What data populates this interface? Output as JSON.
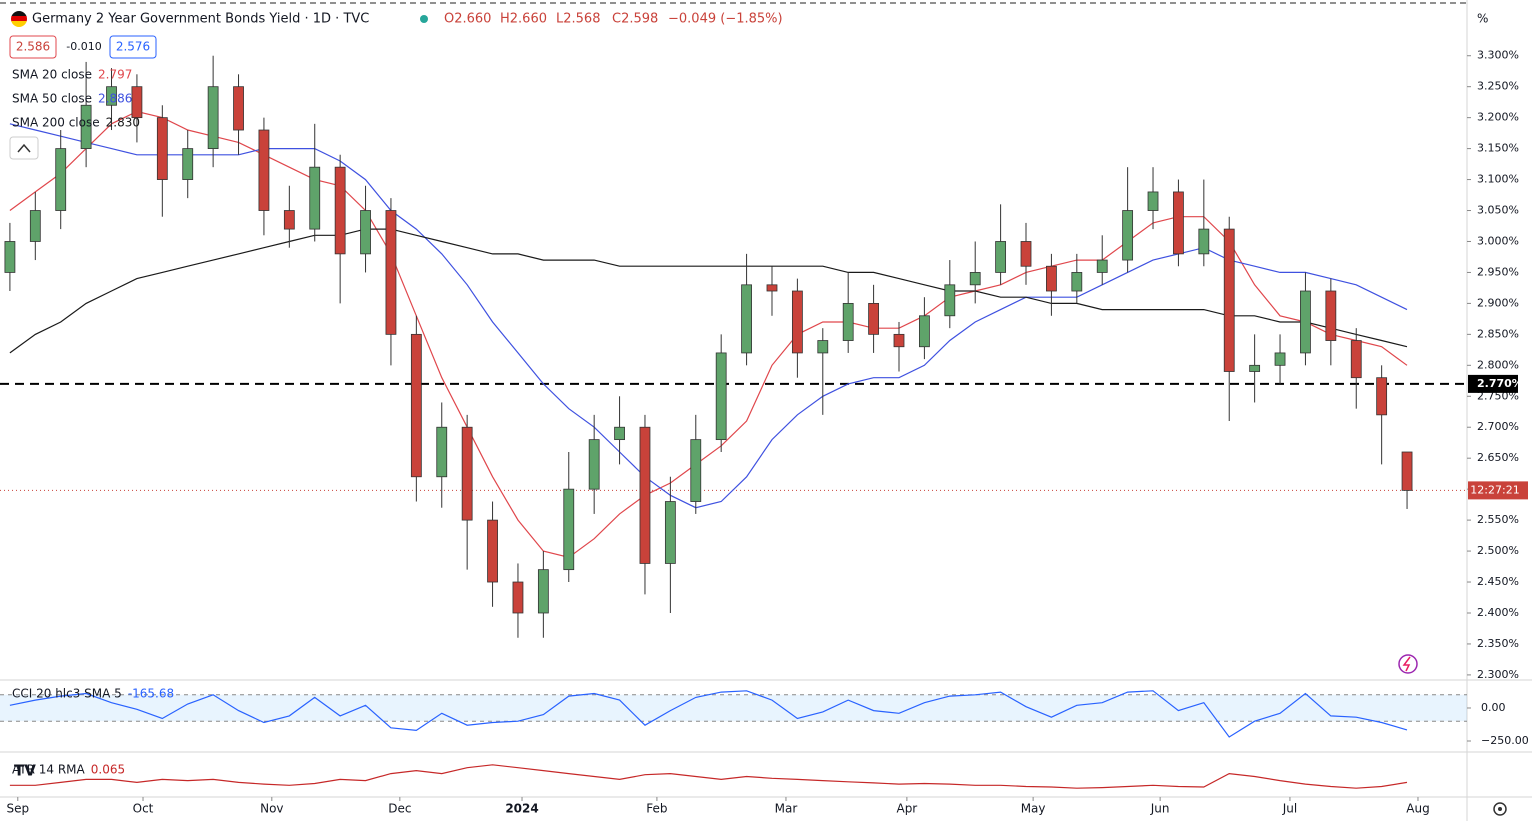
{
  "header": {
    "title": "Germany 2 Year Government Bonds Yield · 1D · TVC",
    "open": "O2.660",
    "high": "H2.660",
    "low": "L2.568",
    "close": "C2.598",
    "change": "−0.049 (−1.85%)"
  },
  "quote": {
    "bid": "2.586",
    "spread": "-0.010",
    "ask": "2.576"
  },
  "chart_data": [
    {
      "type": "candlestick",
      "y_unit_label": "%",
      "countdown": "12:27:21",
      "up_color": "#5fa36a",
      "down_color": "#c9423a",
      "xlim": [
        -0.39,
        57.36
      ],
      "xticks": [
        {
          "value": 0.31,
          "label": "Sep"
        },
        {
          "value": 5.24,
          "label": "Oct"
        },
        {
          "value": 10.31,
          "label": "Nov"
        },
        {
          "value": 15.35,
          "label": "Dec"
        },
        {
          "value": 20.16,
          "label": "2024"
        },
        {
          "value": 25.47,
          "label": "Feb"
        },
        {
          "value": 30.55,
          "label": "Mar"
        },
        {
          "value": 35.31,
          "label": "Apr"
        },
        {
          "value": 40.28,
          "label": "May"
        },
        {
          "value": 45.28,
          "label": "Jun"
        },
        {
          "value": 50.39,
          "label": "Jul"
        },
        {
          "value": 55.43,
          "label": "Aug"
        }
      ],
      "ylim": [
        2.295,
        3.39
      ],
      "yticks": [
        {
          "value": 3.3,
          "label": "3.300%"
        },
        {
          "value": 3.25,
          "label": "3.250%"
        },
        {
          "value": 3.2,
          "label": "3.200%"
        },
        {
          "value": 3.15,
          "label": "3.150%"
        },
        {
          "value": 3.1,
          "label": "3.100%"
        },
        {
          "value": 3.05,
          "label": "3.050%"
        },
        {
          "value": 3.0,
          "label": "3.000%"
        },
        {
          "value": 2.95,
          "label": "2.950%"
        },
        {
          "value": 2.9,
          "label": "2.900%"
        },
        {
          "value": 2.85,
          "label": "2.850%"
        },
        {
          "value": 2.8,
          "label": "2.800%"
        },
        {
          "value": 2.75,
          "label": "2.750%"
        },
        {
          "value": 2.7,
          "label": "2.700%"
        },
        {
          "value": 2.65,
          "label": "2.650%"
        },
        {
          "value": 2.6,
          "label": "2.600%"
        },
        {
          "value": 2.55,
          "label": "2.550%"
        },
        {
          "value": 2.5,
          "label": "2.500%"
        },
        {
          "value": 2.45,
          "label": "2.450%"
        },
        {
          "value": 2.4,
          "label": "2.400%"
        },
        {
          "value": 2.35,
          "label": "2.350%"
        },
        {
          "value": 2.3,
          "label": "2.300%"
        }
      ],
      "hline": {
        "value": 2.77,
        "label": "2.770%"
      },
      "ohlc": [
        [
          2.95,
          3.03,
          2.92,
          3.0
        ],
        [
          3.0,
          3.08,
          2.97,
          3.05
        ],
        [
          3.05,
          3.18,
          3.02,
          3.15
        ],
        [
          3.15,
          3.29,
          3.12,
          3.22
        ],
        [
          3.22,
          3.28,
          3.18,
          3.25
        ],
        [
          3.25,
          3.27,
          3.16,
          3.2
        ],
        [
          3.2,
          3.22,
          3.04,
          3.1
        ],
        [
          3.1,
          3.18,
          3.07,
          3.15
        ],
        [
          3.15,
          3.3,
          3.12,
          3.25
        ],
        [
          3.25,
          3.27,
          3.14,
          3.18
        ],
        [
          3.18,
          3.2,
          3.01,
          3.05
        ],
        [
          3.05,
          3.09,
          2.99,
          3.02
        ],
        [
          3.02,
          3.19,
          3.0,
          3.12
        ],
        [
          3.12,
          3.14,
          2.9,
          2.98
        ],
        [
          2.98,
          3.09,
          2.95,
          3.05
        ],
        [
          3.05,
          3.07,
          2.8,
          2.85
        ],
        [
          2.85,
          2.88,
          2.58,
          2.62
        ],
        [
          2.62,
          2.74,
          2.57,
          2.7
        ],
        [
          2.7,
          2.72,
          2.47,
          2.55
        ],
        [
          2.55,
          2.58,
          2.41,
          2.45
        ],
        [
          2.45,
          2.48,
          2.36,
          2.4
        ],
        [
          2.4,
          2.5,
          2.36,
          2.47
        ],
        [
          2.47,
          2.66,
          2.45,
          2.6
        ],
        [
          2.6,
          2.72,
          2.56,
          2.68
        ],
        [
          2.68,
          2.75,
          2.64,
          2.7
        ],
        [
          2.7,
          2.72,
          2.43,
          2.48
        ],
        [
          2.48,
          2.62,
          2.4,
          2.58
        ],
        [
          2.58,
          2.72,
          2.56,
          2.68
        ],
        [
          2.68,
          2.85,
          2.66,
          2.82
        ],
        [
          2.82,
          2.98,
          2.8,
          2.93
        ],
        [
          2.93,
          2.96,
          2.88,
          2.92
        ],
        [
          2.92,
          2.94,
          2.78,
          2.82
        ],
        [
          2.82,
          2.86,
          2.72,
          2.84
        ],
        [
          2.84,
          2.95,
          2.82,
          2.9
        ],
        [
          2.9,
          2.93,
          2.82,
          2.85
        ],
        [
          2.85,
          2.87,
          2.79,
          2.83
        ],
        [
          2.83,
          2.91,
          2.81,
          2.88
        ],
        [
          2.88,
          2.97,
          2.86,
          2.93
        ],
        [
          2.93,
          3.0,
          2.9,
          2.95
        ],
        [
          2.95,
          3.06,
          2.93,
          3.0
        ],
        [
          3.0,
          3.03,
          2.93,
          2.96
        ],
        [
          2.96,
          2.98,
          2.88,
          2.92
        ],
        [
          2.92,
          2.98,
          2.9,
          2.95
        ],
        [
          2.95,
          3.01,
          2.93,
          2.97
        ],
        [
          2.97,
          3.12,
          2.95,
          3.05
        ],
        [
          3.05,
          3.12,
          3.02,
          3.08
        ],
        [
          3.08,
          3.1,
          2.96,
          2.98
        ],
        [
          2.98,
          3.1,
          2.96,
          3.02
        ],
        [
          3.02,
          3.04,
          2.71,
          2.79
        ],
        [
          2.79,
          2.85,
          2.74,
          2.8
        ],
        [
          2.8,
          2.85,
          2.77,
          2.82
        ],
        [
          2.82,
          2.95,
          2.8,
          2.92
        ],
        [
          2.92,
          2.94,
          2.8,
          2.84
        ],
        [
          2.84,
          2.86,
          2.73,
          2.78
        ],
        [
          2.78,
          2.8,
          2.64,
          2.72
        ],
        [
          2.66,
          2.66,
          2.568,
          2.598
        ]
      ],
      "series": [
        {
          "name": "SMA 20 close",
          "legend_value": "2.797",
          "color": "#e0474c",
          "values": [
            3.05,
            3.08,
            3.11,
            3.15,
            3.19,
            3.21,
            3.2,
            3.18,
            3.17,
            3.16,
            3.14,
            3.12,
            3.1,
            3.09,
            3.05,
            2.98,
            2.88,
            2.78,
            2.7,
            2.62,
            2.55,
            2.5,
            2.49,
            2.52,
            2.56,
            2.59,
            2.61,
            2.64,
            2.67,
            2.71,
            2.8,
            2.85,
            2.87,
            2.87,
            2.86,
            2.86,
            2.88,
            2.91,
            2.92,
            2.93,
            2.95,
            2.96,
            2.97,
            2.97,
            3.0,
            3.03,
            3.04,
            3.04,
            3.0,
            2.93,
            2.88,
            2.87,
            2.85,
            2.84,
            2.83,
            2.8
          ]
        },
        {
          "name": "SMA 50 close",
          "legend_value": "2.886",
          "color": "#3f51e0",
          "values": [
            3.19,
            3.18,
            3.17,
            3.16,
            3.15,
            3.14,
            3.14,
            3.14,
            3.14,
            3.14,
            3.15,
            3.15,
            3.15,
            3.13,
            3.1,
            3.05,
            3.02,
            2.98,
            2.93,
            2.87,
            2.82,
            2.77,
            2.73,
            2.7,
            2.66,
            2.62,
            2.59,
            2.57,
            2.58,
            2.62,
            2.68,
            2.72,
            2.75,
            2.77,
            2.78,
            2.78,
            2.8,
            2.84,
            2.87,
            2.89,
            2.91,
            2.91,
            2.91,
            2.93,
            2.95,
            2.97,
            2.98,
            2.99,
            2.97,
            2.96,
            2.95,
            2.95,
            2.94,
            2.93,
            2.91,
            2.89
          ]
        },
        {
          "name": "SMA 200 close",
          "legend_value": "2.830",
          "color": "#1a1a1a",
          "values": [
            2.82,
            2.85,
            2.87,
            2.9,
            2.92,
            2.94,
            2.95,
            2.96,
            2.97,
            2.98,
            2.99,
            3.0,
            3.01,
            3.01,
            3.02,
            3.02,
            3.01,
            3.0,
            2.99,
            2.98,
            2.98,
            2.97,
            2.97,
            2.97,
            2.96,
            2.96,
            2.96,
            2.96,
            2.96,
            2.96,
            2.96,
            2.96,
            2.96,
            2.95,
            2.95,
            2.94,
            2.93,
            2.92,
            2.92,
            2.91,
            2.91,
            2.9,
            2.9,
            2.89,
            2.89,
            2.89,
            2.89,
            2.89,
            2.88,
            2.88,
            2.87,
            2.87,
            2.86,
            2.85,
            2.84,
            2.83
          ]
        }
      ]
    },
    {
      "type": "line",
      "title": "CCI 20 hlc3 SMA 5",
      "ylim": [
        -303,
        174
      ],
      "yticks": [
        {
          "value": 0,
          "label": "0.00"
        },
        {
          "value": -250,
          "label": "−250.00"
        }
      ],
      "band": [
        100,
        -100
      ],
      "series": [
        {
          "color": "#2962ff",
          "values": [
            20,
            60,
            90,
            110,
            40,
            -10,
            -80,
            30,
            100,
            -20,
            -110,
            -60,
            80,
            -60,
            20,
            -150,
            -170,
            -40,
            -130,
            -110,
            -100,
            -50,
            90,
            110,
            60,
            -130,
            -20,
            80,
            120,
            130,
            60,
            -80,
            -30,
            60,
            -20,
            -40,
            40,
            90,
            100,
            120,
            10,
            -70,
            20,
            40,
            120,
            130,
            -20,
            40,
            -220,
            -100,
            -40,
            110,
            -60,
            -70,
            -110,
            -165.68
          ],
          "value_labels": [
            null,
            null,
            null,
            null,
            null,
            null,
            null,
            null,
            null,
            null,
            null,
            null,
            null,
            null,
            null,
            null,
            null,
            null,
            null,
            null,
            null,
            null,
            null,
            null,
            null,
            null,
            null,
            null,
            null,
            null,
            null,
            null,
            null,
            null,
            null,
            null,
            null,
            null,
            null,
            null,
            null,
            null,
            null,
            null,
            null,
            null,
            null,
            null,
            null,
            null,
            null,
            null,
            null,
            null,
            null,
            "-165.68"
          ]
        }
      ]
    },
    {
      "type": "line",
      "title": "ATR 14 RMA",
      "ylim": [
        0.04,
        0.11
      ],
      "series": [
        {
          "color": "#c62828",
          "values": [
            0.06,
            0.06,
            0.065,
            0.07,
            0.07,
            0.065,
            0.07,
            0.068,
            0.07,
            0.065,
            0.062,
            0.06,
            0.063,
            0.07,
            0.068,
            0.08,
            0.085,
            0.08,
            0.09,
            0.095,
            0.09,
            0.085,
            0.08,
            0.075,
            0.07,
            0.078,
            0.08,
            0.075,
            0.07,
            0.075,
            0.072,
            0.07,
            0.068,
            0.066,
            0.064,
            0.062,
            0.063,
            0.062,
            0.06,
            0.06,
            0.058,
            0.057,
            0.055,
            0.056,
            0.058,
            0.06,
            0.058,
            0.057,
            0.08,
            0.075,
            0.068,
            0.062,
            0.058,
            0.055,
            0.058,
            0.065
          ]
        }
      ]
    }
  ]
}
